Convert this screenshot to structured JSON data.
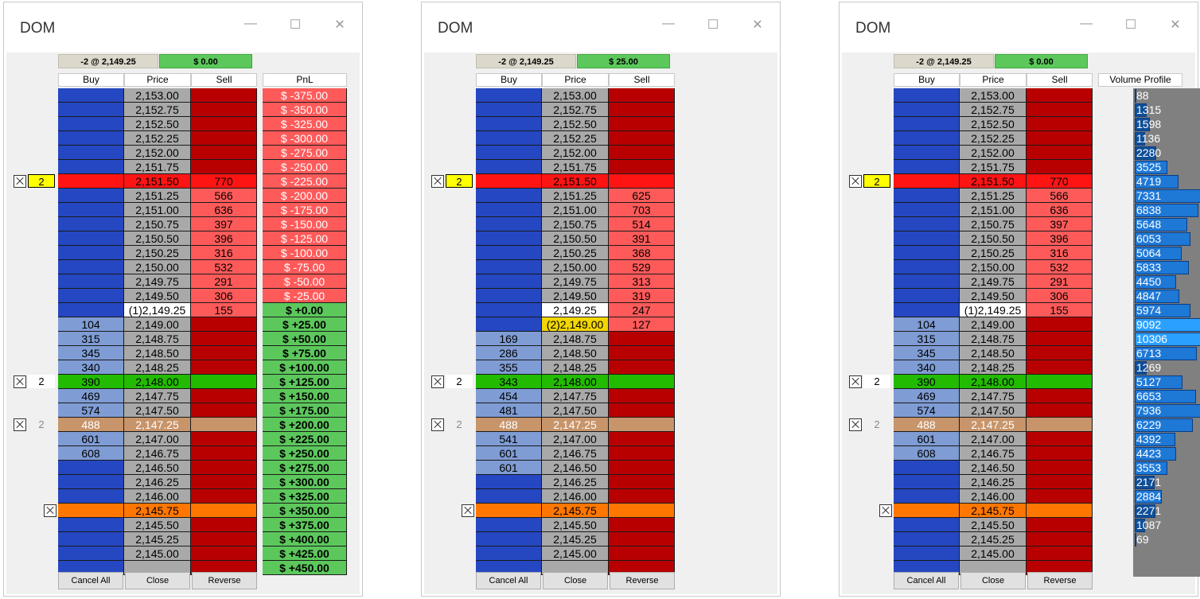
{
  "windows": [
    {
      "title": "DOM",
      "minimize": "—",
      "maximize": "☐",
      "close": "✕",
      "position": "-2 @ 2,149.25",
      "pnl": "$ 0.00",
      "side": "pnl",
      "side_header": "PnL",
      "headers": {
        "buy": "Buy",
        "price": "Price",
        "sell": "Sell"
      },
      "buttons": {
        "cancel_all": "Cancel All",
        "close": "Close",
        "reverse": "Reverse"
      },
      "rows": [
        {
          "price": "2,153.00",
          "buy": "",
          "sell": "",
          "pnl": "$ -375.00",
          "state": "ask"
        },
        {
          "price": "2,152.75",
          "buy": "",
          "sell": "",
          "pnl": "$ -350.00",
          "state": "ask"
        },
        {
          "price": "2,152.50",
          "buy": "",
          "sell": "",
          "pnl": "$ -325.00",
          "state": "ask"
        },
        {
          "price": "2,152.25",
          "buy": "",
          "sell": "",
          "pnl": "$ -300.00",
          "state": "ask"
        },
        {
          "price": "2,152.00",
          "buy": "",
          "sell": "",
          "pnl": "$ -275.00",
          "state": "ask"
        },
        {
          "price": "2,151.75",
          "buy": "",
          "sell": "",
          "pnl": "$ -250.00",
          "state": "ask"
        },
        {
          "price": "2,151.50",
          "buy": "",
          "sell": "770",
          "pnl": "$ -225.00",
          "state": "ask",
          "hl": "red",
          "order": {
            "qty": "2",
            "style": "yellow",
            "x": true
          }
        },
        {
          "price": "2,151.25",
          "buy": "",
          "sell": "566",
          "pnl": "$ -200.00",
          "state": "ask"
        },
        {
          "price": "2,151.00",
          "buy": "",
          "sell": "636",
          "pnl": "$ -175.00",
          "state": "ask"
        },
        {
          "price": "2,150.75",
          "buy": "",
          "sell": "397",
          "pnl": "$ -150.00",
          "state": "ask"
        },
        {
          "price": "2,150.50",
          "buy": "",
          "sell": "396",
          "pnl": "$ -125.00",
          "state": "ask"
        },
        {
          "price": "2,150.25",
          "buy": "",
          "sell": "316",
          "pnl": "$ -100.00",
          "state": "ask"
        },
        {
          "price": "2,150.00",
          "buy": "",
          "sell": "532",
          "pnl": "$ -75.00",
          "state": "ask"
        },
        {
          "price": "2,149.75",
          "buy": "",
          "sell": "291",
          "pnl": "$ -50.00",
          "state": "ask"
        },
        {
          "price": "2,149.50",
          "buy": "",
          "sell": "306",
          "pnl": "$ -25.00",
          "state": "ask"
        },
        {
          "price": "(1)2,149.25",
          "buy": "",
          "sell": "155",
          "pnl": "$ +0.00",
          "state": "ask",
          "cur": true
        },
        {
          "price": "2,149.00",
          "buy": "104",
          "sell": "",
          "pnl": "$ +25.00",
          "state": "bid"
        },
        {
          "price": "2,148.75",
          "buy": "315",
          "sell": "",
          "pnl": "$ +50.00",
          "state": "bid"
        },
        {
          "price": "2,148.50",
          "buy": "345",
          "sell": "",
          "pnl": "$ +75.00",
          "state": "bid"
        },
        {
          "price": "2,148.25",
          "buy": "340",
          "sell": "",
          "pnl": "$ +100.00",
          "state": "bid"
        },
        {
          "price": "2,148.00",
          "buy": "390",
          "sell": "",
          "pnl": "$ +125.00",
          "state": "bid",
          "hl": "green",
          "order": {
            "qty": "2",
            "style": "white",
            "x": true
          }
        },
        {
          "price": "2,147.75",
          "buy": "469",
          "sell": "",
          "pnl": "$ +150.00",
          "state": "bid"
        },
        {
          "price": "2,147.50",
          "buy": "574",
          "sell": "",
          "pnl": "$ +175.00",
          "state": "bid"
        },
        {
          "price": "2,147.25",
          "buy": "488",
          "sell": "",
          "pnl": "$ +200.00",
          "state": "bid",
          "hl": "tan",
          "order": {
            "qty": "2",
            "style": "grey",
            "x": true
          }
        },
        {
          "price": "2,147.00",
          "buy": "601",
          "sell": "",
          "pnl": "$ +225.00",
          "state": "bid"
        },
        {
          "price": "2,146.75",
          "buy": "608",
          "sell": "",
          "pnl": "$ +250.00",
          "state": "bid"
        },
        {
          "price": "2,146.50",
          "buy": "",
          "sell": "",
          "pnl": "$ +275.00",
          "state": "empty"
        },
        {
          "price": "2,146.25",
          "buy": "",
          "sell": "",
          "pnl": "$ +300.00",
          "state": "empty"
        },
        {
          "price": "2,146.00",
          "buy": "",
          "sell": "",
          "pnl": "$ +325.00",
          "state": "empty"
        },
        {
          "price": "2,145.75",
          "buy": "",
          "sell": "",
          "pnl": "$ +350.00",
          "state": "empty",
          "hl": "orange",
          "order": {
            "qty": "",
            "style": "none",
            "x": true
          }
        },
        {
          "price": "2,145.50",
          "buy": "",
          "sell": "",
          "pnl": "$ +375.00",
          "state": "empty"
        },
        {
          "price": "2,145.25",
          "buy": "",
          "sell": "",
          "pnl": "$ +400.00",
          "state": "empty"
        },
        {
          "price": "2,145.00",
          "buy": "",
          "sell": "",
          "pnl": "$ +425.00",
          "state": "empty"
        },
        {
          "price": "",
          "buy": "",
          "sell": "",
          "pnl": "$ +450.00",
          "state": "empty"
        }
      ]
    },
    {
      "title": "DOM",
      "minimize": "—",
      "maximize": "☐",
      "close": "✕",
      "position": "-2 @ 2,149.25",
      "pnl": "$ 25.00",
      "side": "none",
      "side_header": "",
      "headers": {
        "buy": "Buy",
        "price": "Price",
        "sell": "Sell"
      },
      "buttons": {
        "cancel_all": "Cancel All",
        "close": "Close",
        "reverse": "Reverse"
      },
      "rows": [
        {
          "price": "2,153.00",
          "buy": "",
          "sell": "",
          "state": "ask"
        },
        {
          "price": "2,152.75",
          "buy": "",
          "sell": "",
          "state": "ask"
        },
        {
          "price": "2,152.50",
          "buy": "",
          "sell": "",
          "state": "ask"
        },
        {
          "price": "2,152.25",
          "buy": "",
          "sell": "",
          "state": "ask"
        },
        {
          "price": "2,152.00",
          "buy": "",
          "sell": "",
          "state": "ask"
        },
        {
          "price": "2,151.75",
          "buy": "",
          "sell": "",
          "state": "ask"
        },
        {
          "price": "2,151.50",
          "buy": "",
          "sell": "",
          "state": "ask",
          "hl": "red",
          "order": {
            "qty": "2",
            "style": "yellow",
            "x": true
          }
        },
        {
          "price": "2,151.25",
          "buy": "",
          "sell": "625",
          "state": "ask"
        },
        {
          "price": "2,151.00",
          "buy": "",
          "sell": "703",
          "state": "ask"
        },
        {
          "price": "2,150.75",
          "buy": "",
          "sell": "514",
          "state": "ask"
        },
        {
          "price": "2,150.50",
          "buy": "",
          "sell": "391",
          "state": "ask"
        },
        {
          "price": "2,150.25",
          "buy": "",
          "sell": "368",
          "state": "ask"
        },
        {
          "price": "2,150.00",
          "buy": "",
          "sell": "529",
          "state": "ask"
        },
        {
          "price": "2,149.75",
          "buy": "",
          "sell": "313",
          "state": "ask"
        },
        {
          "price": "2,149.50",
          "buy": "",
          "sell": "319",
          "state": "ask"
        },
        {
          "price": "2,149.25",
          "buy": "",
          "sell": "247",
          "state": "ask",
          "cur": true
        },
        {
          "price": "(2)2,149.00",
          "buy": "",
          "sell": "127",
          "state": "ask",
          "pos2": true
        },
        {
          "price": "2,148.75",
          "buy": "169",
          "sell": "",
          "state": "bid"
        },
        {
          "price": "2,148.50",
          "buy": "286",
          "sell": "",
          "state": "bid"
        },
        {
          "price": "2,148.25",
          "buy": "355",
          "sell": "",
          "state": "bid"
        },
        {
          "price": "2,148.00",
          "buy": "343",
          "sell": "",
          "state": "bid",
          "hl": "green",
          "order": {
            "qty": "2",
            "style": "white",
            "x": true
          }
        },
        {
          "price": "2,147.75",
          "buy": "454",
          "sell": "",
          "state": "bid"
        },
        {
          "price": "2,147.50",
          "buy": "481",
          "sell": "",
          "state": "bid"
        },
        {
          "price": "2,147.25",
          "buy": "488",
          "sell": "",
          "state": "bid",
          "hl": "tan",
          "order": {
            "qty": "2",
            "style": "grey",
            "x": true
          }
        },
        {
          "price": "2,147.00",
          "buy": "541",
          "sell": "",
          "state": "bid"
        },
        {
          "price": "2,146.75",
          "buy": "601",
          "sell": "",
          "state": "bid"
        },
        {
          "price": "2,146.50",
          "buy": "601",
          "sell": "",
          "state": "bid"
        },
        {
          "price": "2,146.25",
          "buy": "",
          "sell": "",
          "state": "empty"
        },
        {
          "price": "2,146.00",
          "buy": "",
          "sell": "",
          "state": "empty"
        },
        {
          "price": "2,145.75",
          "buy": "",
          "sell": "",
          "state": "empty",
          "hl": "orange",
          "order": {
            "qty": "",
            "style": "none",
            "x": true
          }
        },
        {
          "price": "2,145.50",
          "buy": "",
          "sell": "",
          "state": "empty"
        },
        {
          "price": "2,145.25",
          "buy": "",
          "sell": "",
          "state": "empty"
        },
        {
          "price": "2,145.00",
          "buy": "",
          "sell": "",
          "state": "empty"
        },
        {
          "price": "",
          "buy": "",
          "sell": "",
          "state": "empty"
        }
      ]
    },
    {
      "title": "DOM",
      "minimize": "—",
      "maximize": "☐",
      "close": "✕",
      "position": "-2 @ 2,149.25",
      "pnl": "$ 0.00",
      "side": "vp",
      "side_header": "Volume Profile",
      "headers": {
        "buy": "Buy",
        "price": "Price",
        "sell": "Sell"
      },
      "buttons": {
        "cancel_all": "Cancel All",
        "close": "Close",
        "reverse": "Reverse"
      },
      "rows": [
        {
          "price": "2,153.00",
          "buy": "",
          "sell": "",
          "vp": "88",
          "state": "ask"
        },
        {
          "price": "2,152.75",
          "buy": "",
          "sell": "",
          "vp": "1315",
          "state": "ask"
        },
        {
          "price": "2,152.50",
          "buy": "",
          "sell": "",
          "vp": "1598",
          "state": "ask"
        },
        {
          "price": "2,152.25",
          "buy": "",
          "sell": "",
          "vp": "1136",
          "state": "ask"
        },
        {
          "price": "2,152.00",
          "buy": "",
          "sell": "",
          "vp": "2280",
          "state": "ask"
        },
        {
          "price": "2,151.75",
          "buy": "",
          "sell": "",
          "vp": "3525",
          "state": "ask"
        },
        {
          "price": "2,151.50",
          "buy": "",
          "sell": "770",
          "vp": "4719",
          "state": "ask",
          "hl": "red",
          "order": {
            "qty": "2",
            "style": "yellow",
            "x": true
          }
        },
        {
          "price": "2,151.25",
          "buy": "",
          "sell": "566",
          "vp": "7331",
          "state": "ask"
        },
        {
          "price": "2,151.00",
          "buy": "",
          "sell": "636",
          "vp": "6838",
          "state": "ask"
        },
        {
          "price": "2,150.75",
          "buy": "",
          "sell": "397",
          "vp": "5648",
          "state": "ask"
        },
        {
          "price": "2,150.50",
          "buy": "",
          "sell": "396",
          "vp": "6053",
          "state": "ask"
        },
        {
          "price": "2,150.25",
          "buy": "",
          "sell": "316",
          "vp": "5064",
          "state": "ask"
        },
        {
          "price": "2,150.00",
          "buy": "",
          "sell": "532",
          "vp": "5833",
          "state": "ask"
        },
        {
          "price": "2,149.75",
          "buy": "",
          "sell": "291",
          "vp": "4450",
          "state": "ask"
        },
        {
          "price": "2,149.50",
          "buy": "",
          "sell": "306",
          "vp": "4847",
          "state": "ask"
        },
        {
          "price": "(1)2,149.25",
          "buy": "",
          "sell": "155",
          "vp": "5974",
          "state": "ask",
          "cur": true
        },
        {
          "price": "2,149.00",
          "buy": "104",
          "sell": "",
          "vp": "9092",
          "state": "bid"
        },
        {
          "price": "2,148.75",
          "buy": "315",
          "sell": "",
          "vp": "10306",
          "state": "bid"
        },
        {
          "price": "2,148.50",
          "buy": "345",
          "sell": "",
          "vp": "6713",
          "state": "bid"
        },
        {
          "price": "2,148.25",
          "buy": "340",
          "sell": "",
          "vp": "1269",
          "state": "bid"
        },
        {
          "price": "2,148.00",
          "buy": "390",
          "sell": "",
          "vp": "5127",
          "state": "bid",
          "hl": "green",
          "order": {
            "qty": "2",
            "style": "white",
            "x": true
          }
        },
        {
          "price": "2,147.75",
          "buy": "469",
          "sell": "",
          "vp": "6653",
          "state": "bid"
        },
        {
          "price": "2,147.50",
          "buy": "574",
          "sell": "",
          "vp": "7936",
          "state": "bid"
        },
        {
          "price": "2,147.25",
          "buy": "488",
          "sell": "",
          "vp": "6229",
          "state": "bid",
          "hl": "tan",
          "order": {
            "qty": "2",
            "style": "grey",
            "x": true
          }
        },
        {
          "price": "2,147.00",
          "buy": "601",
          "sell": "",
          "vp": "4392",
          "state": "bid"
        },
        {
          "price": "2,146.75",
          "buy": "608",
          "sell": "",
          "vp": "4423",
          "state": "bid"
        },
        {
          "price": "2,146.50",
          "buy": "",
          "sell": "",
          "vp": "3553",
          "state": "empty"
        },
        {
          "price": "2,146.25",
          "buy": "",
          "sell": "",
          "vp": "2171",
          "state": "empty"
        },
        {
          "price": "2,146.00",
          "buy": "",
          "sell": "",
          "vp": "2884",
          "state": "empty"
        },
        {
          "price": "2,145.75",
          "buy": "",
          "sell": "",
          "vp": "2271",
          "state": "empty",
          "hl": "orange",
          "order": {
            "qty": "",
            "style": "none",
            "x": true
          }
        },
        {
          "price": "2,145.50",
          "buy": "",
          "sell": "",
          "vp": "1087",
          "state": "empty"
        },
        {
          "price": "2,145.25",
          "buy": "",
          "sell": "",
          "vp": "69",
          "state": "empty"
        },
        {
          "price": "2,145.00",
          "buy": "",
          "sell": "",
          "vp": "",
          "state": "empty"
        },
        {
          "price": "",
          "buy": "",
          "sell": "",
          "vp": "",
          "state": "empty"
        }
      ]
    }
  ]
}
